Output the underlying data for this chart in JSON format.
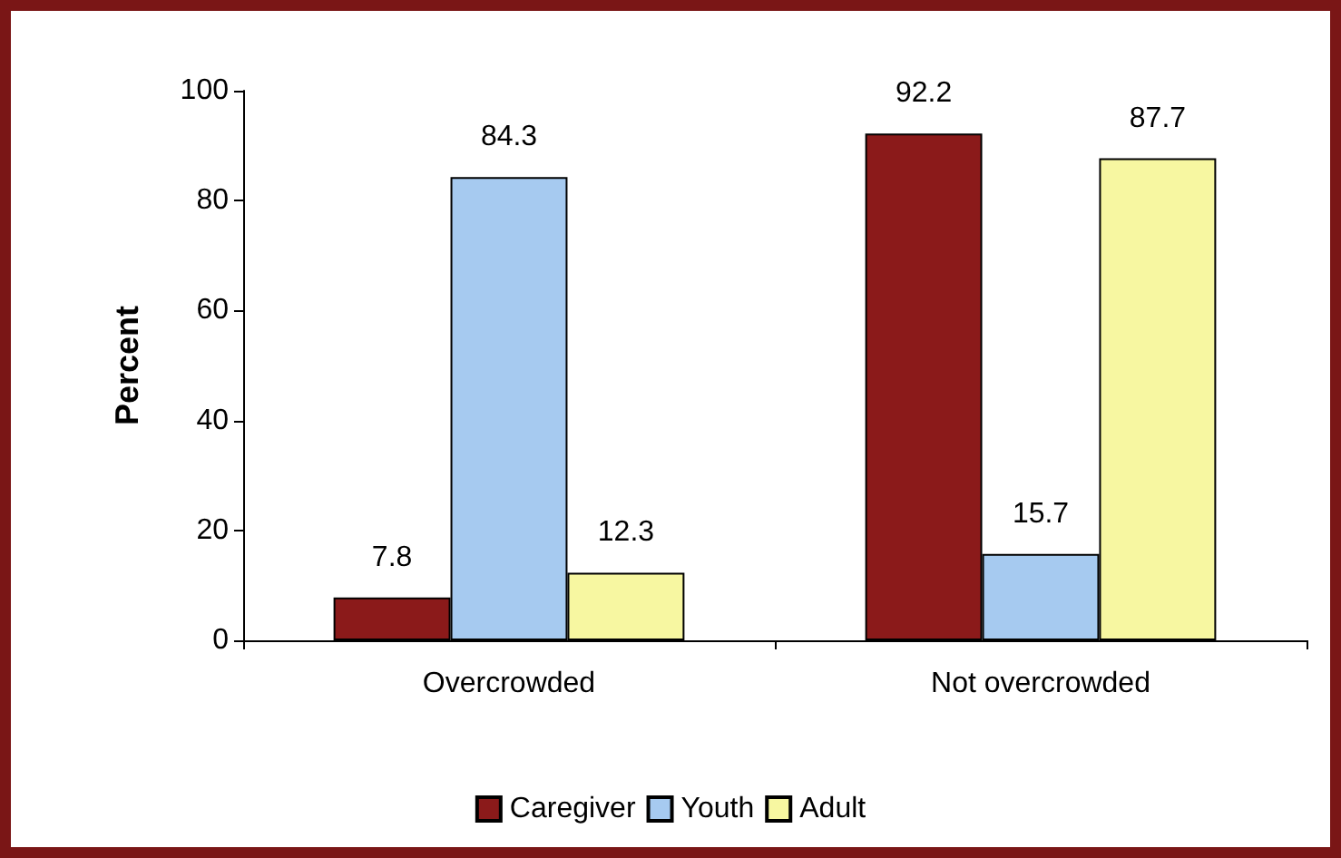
{
  "chart_data": {
    "type": "bar",
    "ylabel": "Percent",
    "categories": [
      "Overcrowded",
      "Not overcrowded"
    ],
    "series": [
      {
        "name": "Caregiver",
        "color": "#8b1a1a",
        "values": [
          7.8,
          92.2
        ]
      },
      {
        "name": "Youth",
        "color": "#a6caf0",
        "values": [
          84.3,
          15.7
        ]
      },
      {
        "name": "Adult",
        "color": "#f7f7a1",
        "values": [
          12.3,
          87.7
        ]
      }
    ],
    "ylim": [
      0,
      100
    ],
    "yticks": [
      0,
      20,
      40,
      60,
      80,
      100
    ],
    "data_labels": true,
    "legend": "bottom",
    "grid": false
  }
}
